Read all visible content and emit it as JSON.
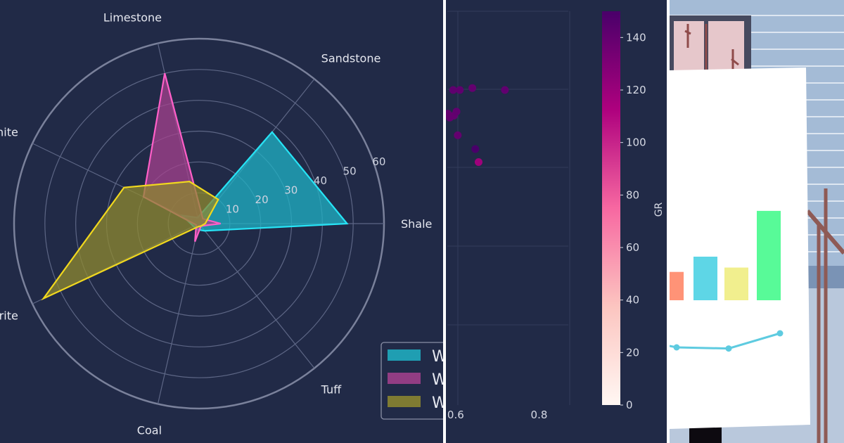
{
  "chart_data": [
    {
      "type": "radar",
      "categories": [
        "Shale",
        "Sandstone",
        "Limestone",
        "Dolomite",
        "Anhydrite",
        "Coal",
        "Tuff"
      ],
      "radial_ticks": [
        "10",
        "20",
        "30",
        "40",
        "50",
        "60"
      ],
      "rmax": 60,
      "series": [
        {
          "name": "W",
          "values": [
            48,
            38,
            2,
            6,
            2,
            2,
            3
          ],
          "color": "#1fb3c6",
          "edge": "#27e3f5"
        },
        {
          "name": "W",
          "values": [
            7,
            2,
            50,
            20,
            1,
            6,
            1
          ],
          "color": "#a6418e",
          "edge": "#ff5fc8"
        },
        {
          "name": "W",
          "values": [
            2,
            10,
            14,
            27,
            56,
            1,
            1
          ],
          "color": "#8f8a2f",
          "edge": "#f1d81e"
        }
      ],
      "legend_position": "bottom-right"
    },
    {
      "type": "scatter",
      "xticks": [
        "0.6",
        "0.8"
      ],
      "xlim": [
        0.58,
        0.87
      ],
      "ylim": [
        0,
        1
      ],
      "colorbar": {
        "label": "GR",
        "ticks": [
          "0",
          "20",
          "40",
          "60",
          "80",
          "100",
          "120",
          "140"
        ],
        "min": 0,
        "max": 150
      },
      "points": [
        {
          "x": 0.581,
          "y": 0.74,
          "c": 140
        },
        {
          "x": 0.586,
          "y": 0.73,
          "c": 140
        },
        {
          "x": 0.594,
          "y": 0.8,
          "c": 142
        },
        {
          "x": 0.596,
          "y": 0.735,
          "c": 140
        },
        {
          "x": 0.602,
          "y": 0.745,
          "c": 141
        },
        {
          "x": 0.605,
          "y": 0.685,
          "c": 140
        },
        {
          "x": 0.61,
          "y": 0.8,
          "c": 142
        },
        {
          "x": 0.64,
          "y": 0.805,
          "c": 140
        },
        {
          "x": 0.647,
          "y": 0.65,
          "c": 150
        },
        {
          "x": 0.655,
          "y": 0.617,
          "c": 118
        },
        {
          "x": 0.718,
          "y": 0.8,
          "c": 141
        }
      ]
    },
    {
      "type": "bar",
      "values": [
        26,
        40,
        30,
        82
      ],
      "colors": [
        "#ff9377",
        "#5ed6e6",
        "#f1ef8e",
        "#58fa98"
      ],
      "line": {
        "values": [
          2,
          1.6,
          7
        ],
        "color": "#5ecbe0"
      }
    }
  ]
}
